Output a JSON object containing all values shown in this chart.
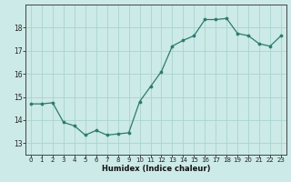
{
  "x": [
    0,
    1,
    2,
    3,
    4,
    5,
    6,
    7,
    8,
    9,
    10,
    11,
    12,
    13,
    14,
    15,
    16,
    17,
    18,
    19,
    20,
    21,
    22,
    23
  ],
  "y": [
    14.7,
    14.7,
    14.75,
    13.9,
    13.75,
    13.35,
    13.55,
    13.35,
    13.4,
    13.45,
    14.8,
    15.45,
    16.1,
    17.2,
    17.45,
    17.65,
    18.35,
    18.35,
    18.4,
    17.75,
    17.65,
    17.3,
    17.2,
    17.65
  ],
  "xlabel": "Humidex (Indice chaleur)",
  "ylim": [
    12.5,
    19.0
  ],
  "xlim": [
    -0.5,
    23.5
  ],
  "yticks": [
    13,
    14,
    15,
    16,
    17,
    18
  ],
  "xticks": [
    0,
    1,
    2,
    3,
    4,
    5,
    6,
    7,
    8,
    9,
    10,
    11,
    12,
    13,
    14,
    15,
    16,
    17,
    18,
    19,
    20,
    21,
    22,
    23
  ],
  "line_color": "#2d7a6e",
  "marker_color": "#2d7a6e",
  "bg_color": "#cceae7",
  "grid_color": "#aad4d0",
  "axis_color": "#444444",
  "tick_label_color": "#222222",
  "xlabel_color": "#111111",
  "tick_fontsize": 5.0,
  "xlabel_fontsize": 6.0,
  "linewidth": 0.9,
  "markersize": 2.2
}
